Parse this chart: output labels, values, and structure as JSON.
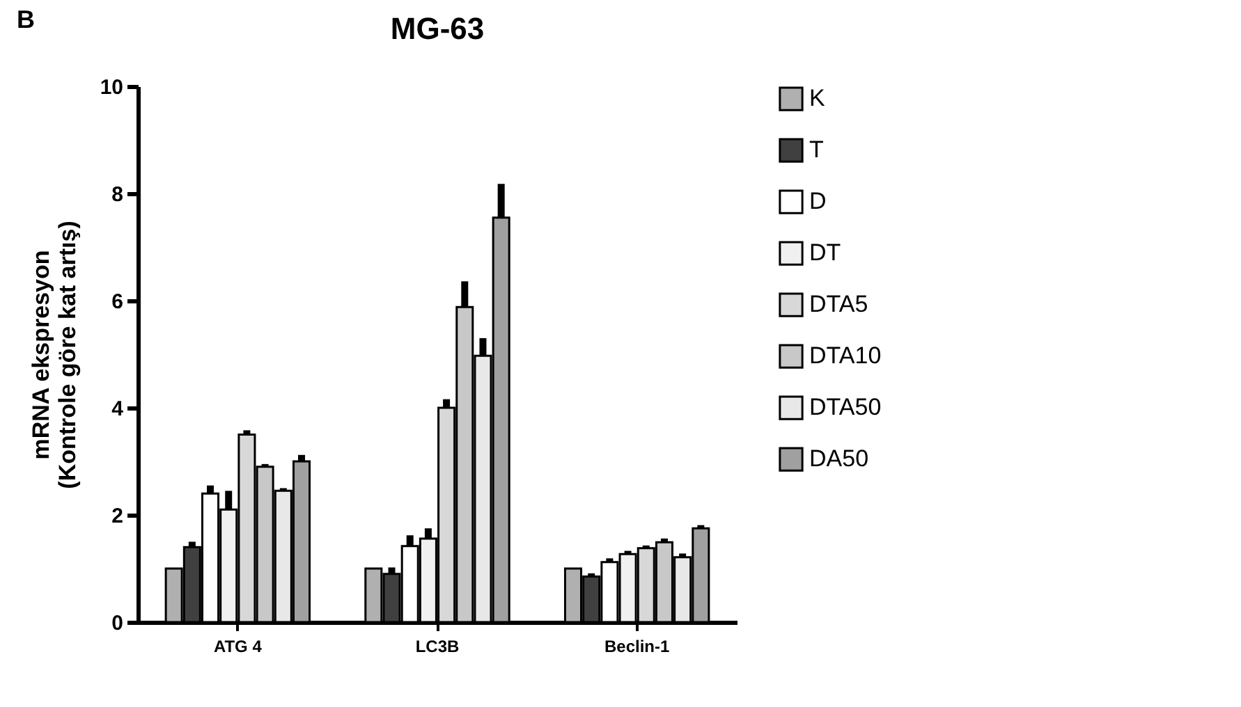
{
  "chart_data": {
    "type": "bar",
    "title": "MG-63",
    "ylabel": [
      "mRNA ekspresyon",
      "(Kontrole göre kat artış)"
    ],
    "annotations": [
      "B"
    ],
    "categories": [
      "ATG 4",
      "LC3B",
      "Beclin-1"
    ],
    "series": [
      {
        "name": "K",
        "color": "#b0b0b0",
        "values": [
          1.0,
          1.0,
          1.0
        ],
        "errors": [
          null,
          null,
          null
        ]
      },
      {
        "name": "T",
        "color": "#404040",
        "values": [
          1.4,
          0.9,
          0.85
        ],
        "errors": [
          0.1,
          0.12,
          0.06
        ]
      },
      {
        "name": "D",
        "color": "#ffffff",
        "values": [
          2.4,
          1.42,
          1.12
        ],
        "errors": [
          0.15,
          0.2,
          0.07
        ]
      },
      {
        "name": "DT",
        "color": "#f0f0f0",
        "values": [
          2.1,
          1.56,
          1.27
        ],
        "errors": [
          0.35,
          0.19,
          0.06
        ]
      },
      {
        "name": "DTA5",
        "color": "#d8d8d8",
        "values": [
          3.5,
          4.0,
          1.38
        ],
        "errors": [
          0.08,
          0.16,
          0.05
        ]
      },
      {
        "name": "DTA10",
        "color": "#c8c8c8",
        "values": [
          2.9,
          5.88,
          1.49
        ],
        "errors": [
          0.05,
          0.48,
          0.07
        ]
      },
      {
        "name": "DTA50",
        "color": "#e8e8e8",
        "values": [
          2.45,
          4.97,
          1.21
        ],
        "errors": [
          0.05,
          0.33,
          0.07
        ]
      },
      {
        "name": "DA50",
        "color": "#a0a0a0",
        "values": [
          3.0,
          7.55,
          1.75
        ],
        "errors": [
          0.12,
          0.63,
          0.06
        ]
      }
    ],
    "ylim": [
      0,
      10
    ],
    "yticks": [
      0,
      2,
      4,
      6,
      8,
      10
    ],
    "grid": false,
    "legend": "right"
  }
}
